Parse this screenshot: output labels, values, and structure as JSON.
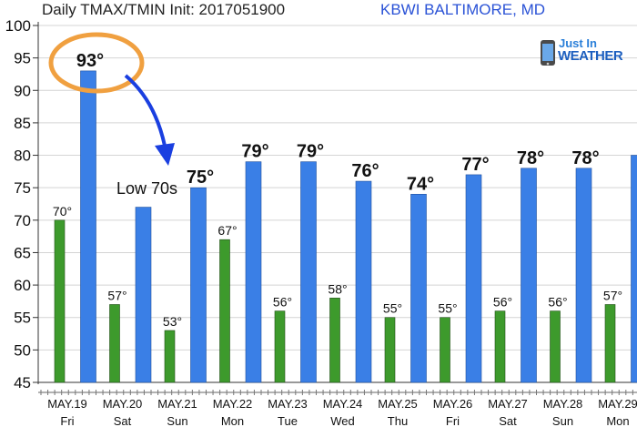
{
  "header": {
    "title": "Daily TMAX/TMIN Init: 2017051900",
    "location": "KBWI BALTIMORE, MD"
  },
  "logo": {
    "line1": "Just In",
    "line2": "WEATHER"
  },
  "annotation": {
    "text": "Low 70s",
    "circled_value": "93°"
  },
  "chart_data": {
    "type": "bar",
    "categories": [
      "MAY.19",
      "MAY.20",
      "MAY.21",
      "MAY.22",
      "MAY.23",
      "MAY.24",
      "MAY.25",
      "MAY.26",
      "MAY.27",
      "MAY.28",
      "MAY.29"
    ],
    "weekdays": [
      "Fri",
      "Sat",
      "Sun",
      "Mon",
      "Tue",
      "Wed",
      "Thu",
      "Fri",
      "Sat",
      "Sun",
      "Mon"
    ],
    "series": [
      {
        "color": "#3a7fe6",
        "values": [
          93,
          72,
          75,
          79,
          79,
          76,
          74,
          77,
          78,
          78,
          80
        ],
        "labels": [
          "93°",
          "",
          "75°",
          "79°",
          "79°",
          "76°",
          "74°",
          "77°",
          "78°",
          "78°",
          ""
        ]
      },
      {
        "color": "#3d9a2c",
        "values": [
          70,
          57,
          53,
          67,
          56,
          58,
          55,
          55,
          56,
          56,
          57
        ],
        "labels": [
          "70°",
          "57°",
          "53°",
          "67°",
          "56°",
          "58°",
          "55°",
          "55°",
          "56°",
          "56°",
          "57°"
        ]
      }
    ],
    "yticks": [
      45,
      50,
      55,
      60,
      65,
      70,
      75,
      80,
      85,
      90,
      95,
      100
    ],
    "ylim": [
      45,
      100
    ],
    "grid": true
  }
}
